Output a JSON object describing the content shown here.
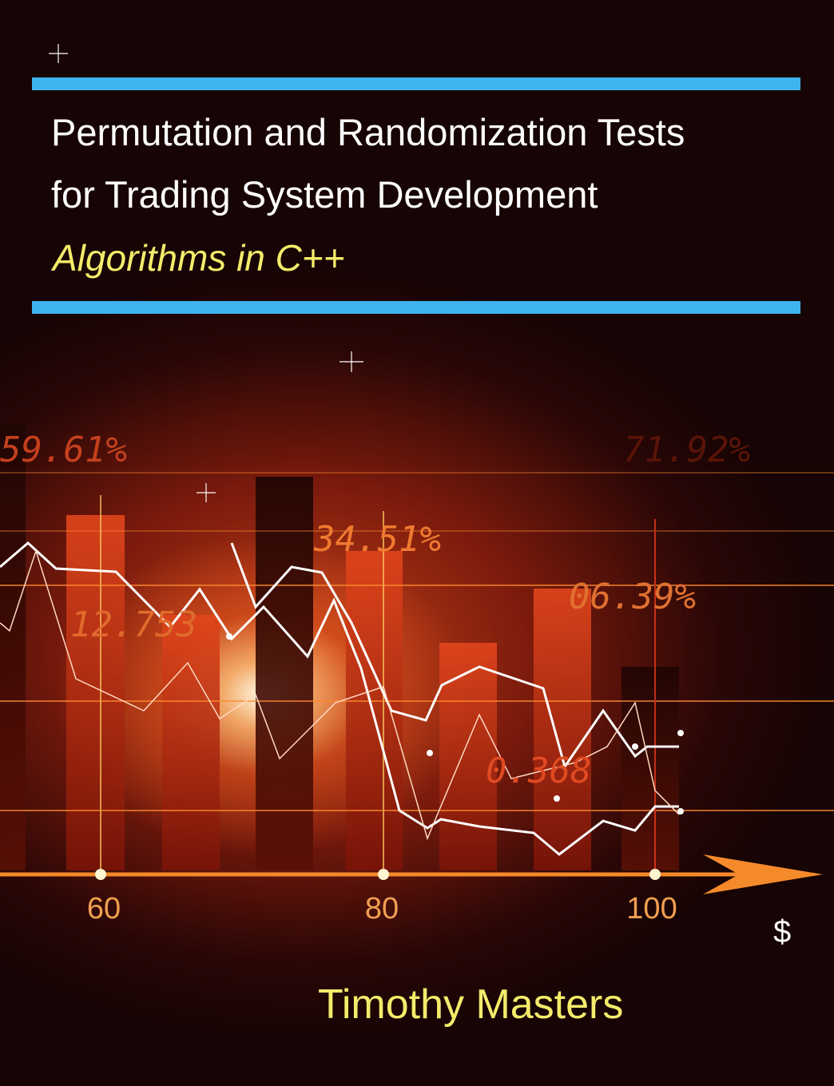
{
  "cover": {
    "title_line1": "Permutation and Randomization Tests",
    "title_line2": "for Trading System Development",
    "subtitle": "Algorithms in C++",
    "author": "Timothy Masters",
    "accent_color": "#3fb3ee",
    "subtitle_color": "#f4ec6a"
  },
  "artwork": {
    "overlay_numbers": [
      "59.61%",
      "71.92%",
      "34.51%",
      "12.753",
      "06.39%",
      "0.368"
    ],
    "axis_ticks": [
      "60",
      "80",
      "100"
    ],
    "currency_symbol": "$"
  }
}
